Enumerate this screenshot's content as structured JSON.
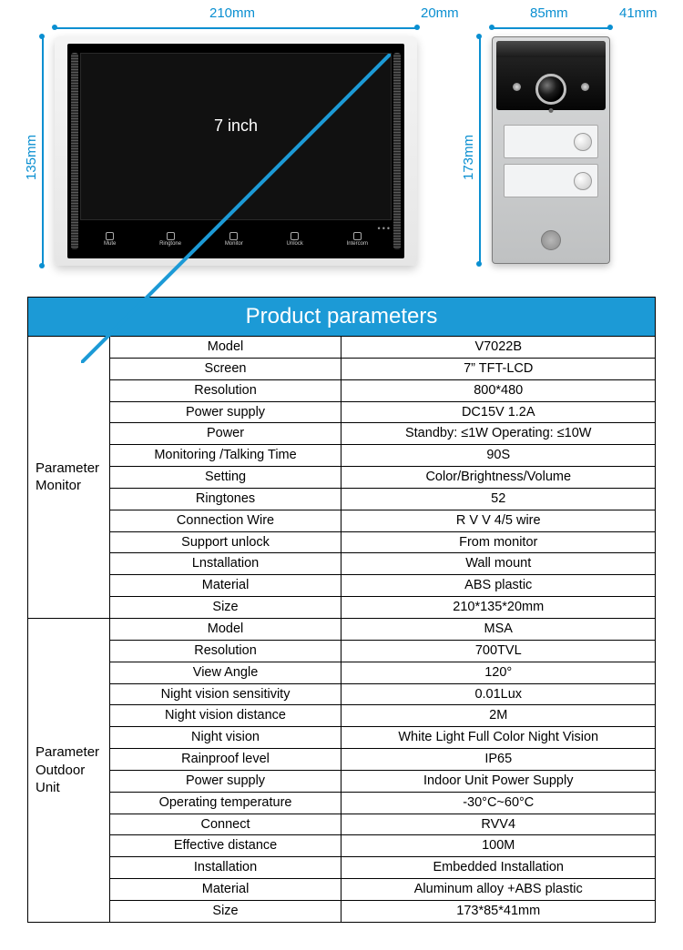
{
  "colors": {
    "header_bg": "#1C9AD6",
    "header_text": "#ffffff",
    "border": "#000000",
    "dimension": "#0a8fd1",
    "background": "#ffffff"
  },
  "monitor_visual": {
    "width_label": "210mm",
    "height_label": "135mm",
    "depth_label": "20mm",
    "screen_label": "7 inch",
    "buttons": [
      "Mute",
      "Ringtone",
      "Monitor",
      "Unlock",
      "Intercom"
    ]
  },
  "outdoor_visual": {
    "width_label": "85mm",
    "height_label": "173mm",
    "depth_label": "41mm"
  },
  "table": {
    "title": "Product parameters",
    "title_fontsize": 24,
    "cell_fontsize": 14.5,
    "col_widths_pct": [
      13,
      37,
      50
    ],
    "sections": [
      {
        "label": "Parameter Monitor",
        "rows": [
          [
            "Model",
            "V7022B"
          ],
          [
            "Screen",
            "7” TFT-LCD"
          ],
          [
            "Resolution",
            "800*480"
          ],
          [
            "Power supply",
            "DC15V 1.2A"
          ],
          [
            "Power",
            "Standby: ≤1W Operating: ≤10W"
          ],
          [
            "Monitoring /Talking Time",
            "90S"
          ],
          [
            "Setting",
            "Color/Brightness/Volume"
          ],
          [
            "Ringtones",
            "52"
          ],
          [
            "Connection Wire",
            "R V V 4/5 wire"
          ],
          [
            "Support unlock",
            "From monitor"
          ],
          [
            "Lnstallation",
            "Wall mount"
          ],
          [
            "Material",
            "ABS plastic"
          ],
          [
            "Size",
            "210*135*20mm"
          ]
        ]
      },
      {
        "label": "Parameter Outdoor Unit",
        "rows": [
          [
            "Model",
            "MSA"
          ],
          [
            "Resolution",
            "700TVL"
          ],
          [
            "View Angle",
            "120°"
          ],
          [
            "Night vision sensitivity",
            "0.01Lux"
          ],
          [
            "Night vision distance",
            "2M"
          ],
          [
            "Night vision",
            "White Light Full Color Night Vision"
          ],
          [
            "Rainproof level",
            "IP65"
          ],
          [
            "Power supply",
            "Indoor Unit Power Supply"
          ],
          [
            "Operating temperature",
            "-30°C~60°C"
          ],
          [
            "Connect",
            "RVV4"
          ],
          [
            "Effective distance",
            "100M"
          ],
          [
            "Installation",
            "Embedded Installation"
          ],
          [
            "Material",
            "Aluminum alloy +ABS plastic"
          ],
          [
            "Size",
            "173*85*41mm"
          ]
        ]
      }
    ]
  }
}
